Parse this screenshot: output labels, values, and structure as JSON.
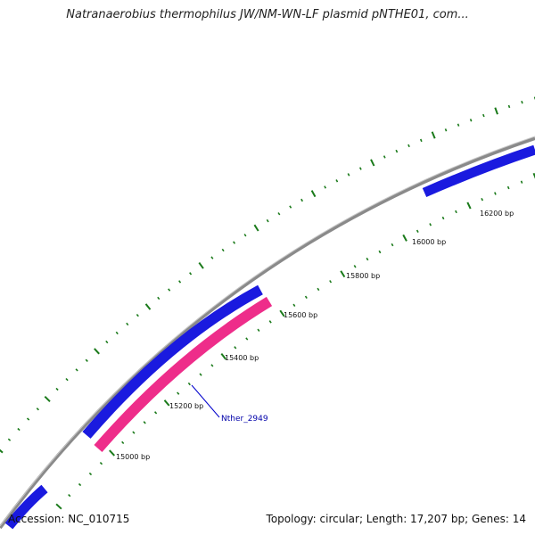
{
  "header": {
    "title": "Natranaerobius thermophilus JW/NM-WN-LF plasmid pNTHE01, com..."
  },
  "map": {
    "ticks": [
      {
        "label": "15000 bp"
      },
      {
        "label": "15200 bp"
      },
      {
        "label": "15400 bp"
      },
      {
        "label": "15600 bp"
      },
      {
        "label": "15800 bp"
      },
      {
        "label": "16000 bp"
      },
      {
        "label": "16200 bp"
      }
    ],
    "gene_label": "Nther_2949",
    "colors": {
      "backbone": "#8a8a8a",
      "forward_gene": "#1a1adf",
      "reverse_gene": "#ee2d8a",
      "tick": "#1a7a1a",
      "callout": "#0000cc"
    }
  },
  "footer": {
    "accession": "Accession: NC_010715",
    "summary": "Topology: circular; Length: 17,207 bp; Genes: 14"
  }
}
